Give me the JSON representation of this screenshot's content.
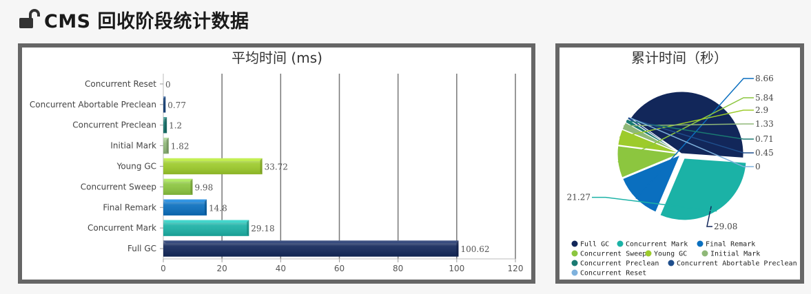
{
  "page": {
    "title": "CMS 回收阶段统计数据",
    "icon": "unlock-icon"
  },
  "chart_data": [
    {
      "type": "bar",
      "orientation": "horizontal",
      "title": "平均时间 (ms)",
      "categories": [
        "Concurrent Reset",
        "Concurrent Abortable Preclean",
        "Concurrent Preclean",
        "Initial Mark",
        "Young GC",
        "Concurrent Sweep",
        "Final Remark",
        "Concurrent Mark",
        "Full GC"
      ],
      "values": [
        0,
        0.77,
        1.2,
        1.82,
        33.72,
        9.98,
        14.8,
        29.18,
        100.62
      ],
      "value_labels": [
        "0",
        "0.77",
        "1.2",
        "1.82",
        "33.72",
        "9.98",
        "14.8",
        "29.18",
        "100.62"
      ],
      "colors": [
        "#7fb2dd",
        "#1f4e8c",
        "#1a7a72",
        "#8fb878",
        "#9dcb2b",
        "#8cc63f",
        "#0a6fbf",
        "#1bb2a6",
        "#12275a"
      ],
      "xlim": [
        0,
        120
      ],
      "xticks": [
        "0",
        "20",
        "40",
        "60",
        "80",
        "100",
        "120"
      ],
      "grid": true
    },
    {
      "type": "pie",
      "title": "累计时间（秒）",
      "slices": [
        {
          "name": "Full GC",
          "value": 29.08,
          "label": "29.08",
          "color": "#12275a"
        },
        {
          "name": "Concurrent Mark",
          "value": 21.27,
          "label": "21.27",
          "color": "#1bb2a6"
        },
        {
          "name": "Final Remark",
          "value": 8.66,
          "label": "8.66",
          "color": "#0a6fbf"
        },
        {
          "name": "Concurrent Sweep",
          "value": 5.84,
          "label": "5.84",
          "color": "#8cc63f"
        },
        {
          "name": "Young GC",
          "value": 2.9,
          "label": "2.9",
          "color": "#9dcb2b"
        },
        {
          "name": "Initial Mark",
          "value": 1.33,
          "label": "1.33",
          "color": "#8fb878"
        },
        {
          "name": "Concurrent Preclean",
          "value": 0.71,
          "label": "0.71",
          "color": "#1a7a72"
        },
        {
          "name": "Concurrent Abortable Preclean",
          "value": 0.45,
          "label": "0.45",
          "color": "#1f4e8c"
        },
        {
          "name": "Concurrent Reset",
          "value": 0,
          "label": "0",
          "color": "#7fb2dd"
        }
      ],
      "legend": "bottom"
    }
  ]
}
